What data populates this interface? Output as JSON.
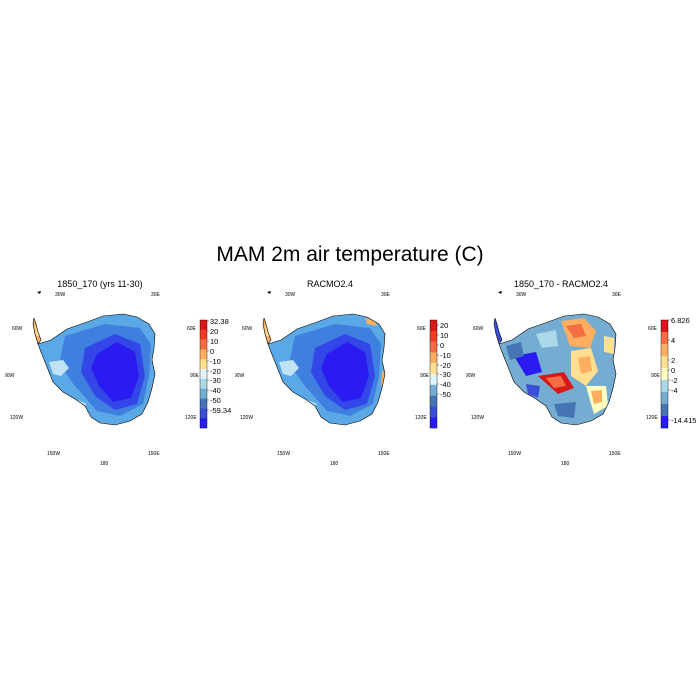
{
  "figure": {
    "title": "MAM 2m air temperature (C)"
  },
  "lon_labels": [
    "30W",
    "30E",
    "60W",
    "60E",
    "90W",
    "90E",
    "120W",
    "120E",
    "150W",
    "150E",
    "180"
  ],
  "chart_data": [
    {
      "type": "heatmap",
      "title": "1850_170 (yrs 11-30)",
      "projection": "south polar stereographic",
      "colorbar": {
        "labels": [
          "32.38",
          "20",
          "10",
          "0",
          "-10",
          "-20",
          "-30",
          "-40",
          "-50",
          "-59.34"
        ],
        "colors": [
          "#d7191c",
          "#ef3b21",
          "#f46d43",
          "#fdae61",
          "#fee090",
          "#e0f3f8",
          "#abd9e9",
          "#74add1",
          "#4575b4",
          "#3a4fd6",
          "#2a1cf0"
        ]
      },
      "range": [
        -59.34,
        32.38
      ]
    },
    {
      "type": "heatmap",
      "title": "RACMO2.4",
      "projection": "south polar stereographic",
      "colorbar": {
        "labels": [
          "20",
          "10",
          "0",
          "-10",
          "-20",
          "-30",
          "-40",
          "-50"
        ],
        "colors": [
          "#d7191c",
          "#ef3b21",
          "#f46d43",
          "#fdae61",
          "#fee090",
          "#e0f3f8",
          "#74add1",
          "#4575b4",
          "#3a4fd6",
          "#2a1cf0"
        ]
      }
    },
    {
      "type": "heatmap",
      "title": "1850_170 - RACMO2.4",
      "projection": "south polar stereographic",
      "colorbar": {
        "labels": [
          "6.826",
          "4",
          "2",
          "0",
          "-2",
          "-4",
          "-14.415"
        ],
        "colors": [
          "#d7191c",
          "#f46d43",
          "#fdae61",
          "#fee090",
          "#ffffbf",
          "#abd9e9",
          "#74add1",
          "#4575b4",
          "#2a1cf0"
        ]
      },
      "range": [
        -14.415,
        6.826
      ]
    }
  ]
}
